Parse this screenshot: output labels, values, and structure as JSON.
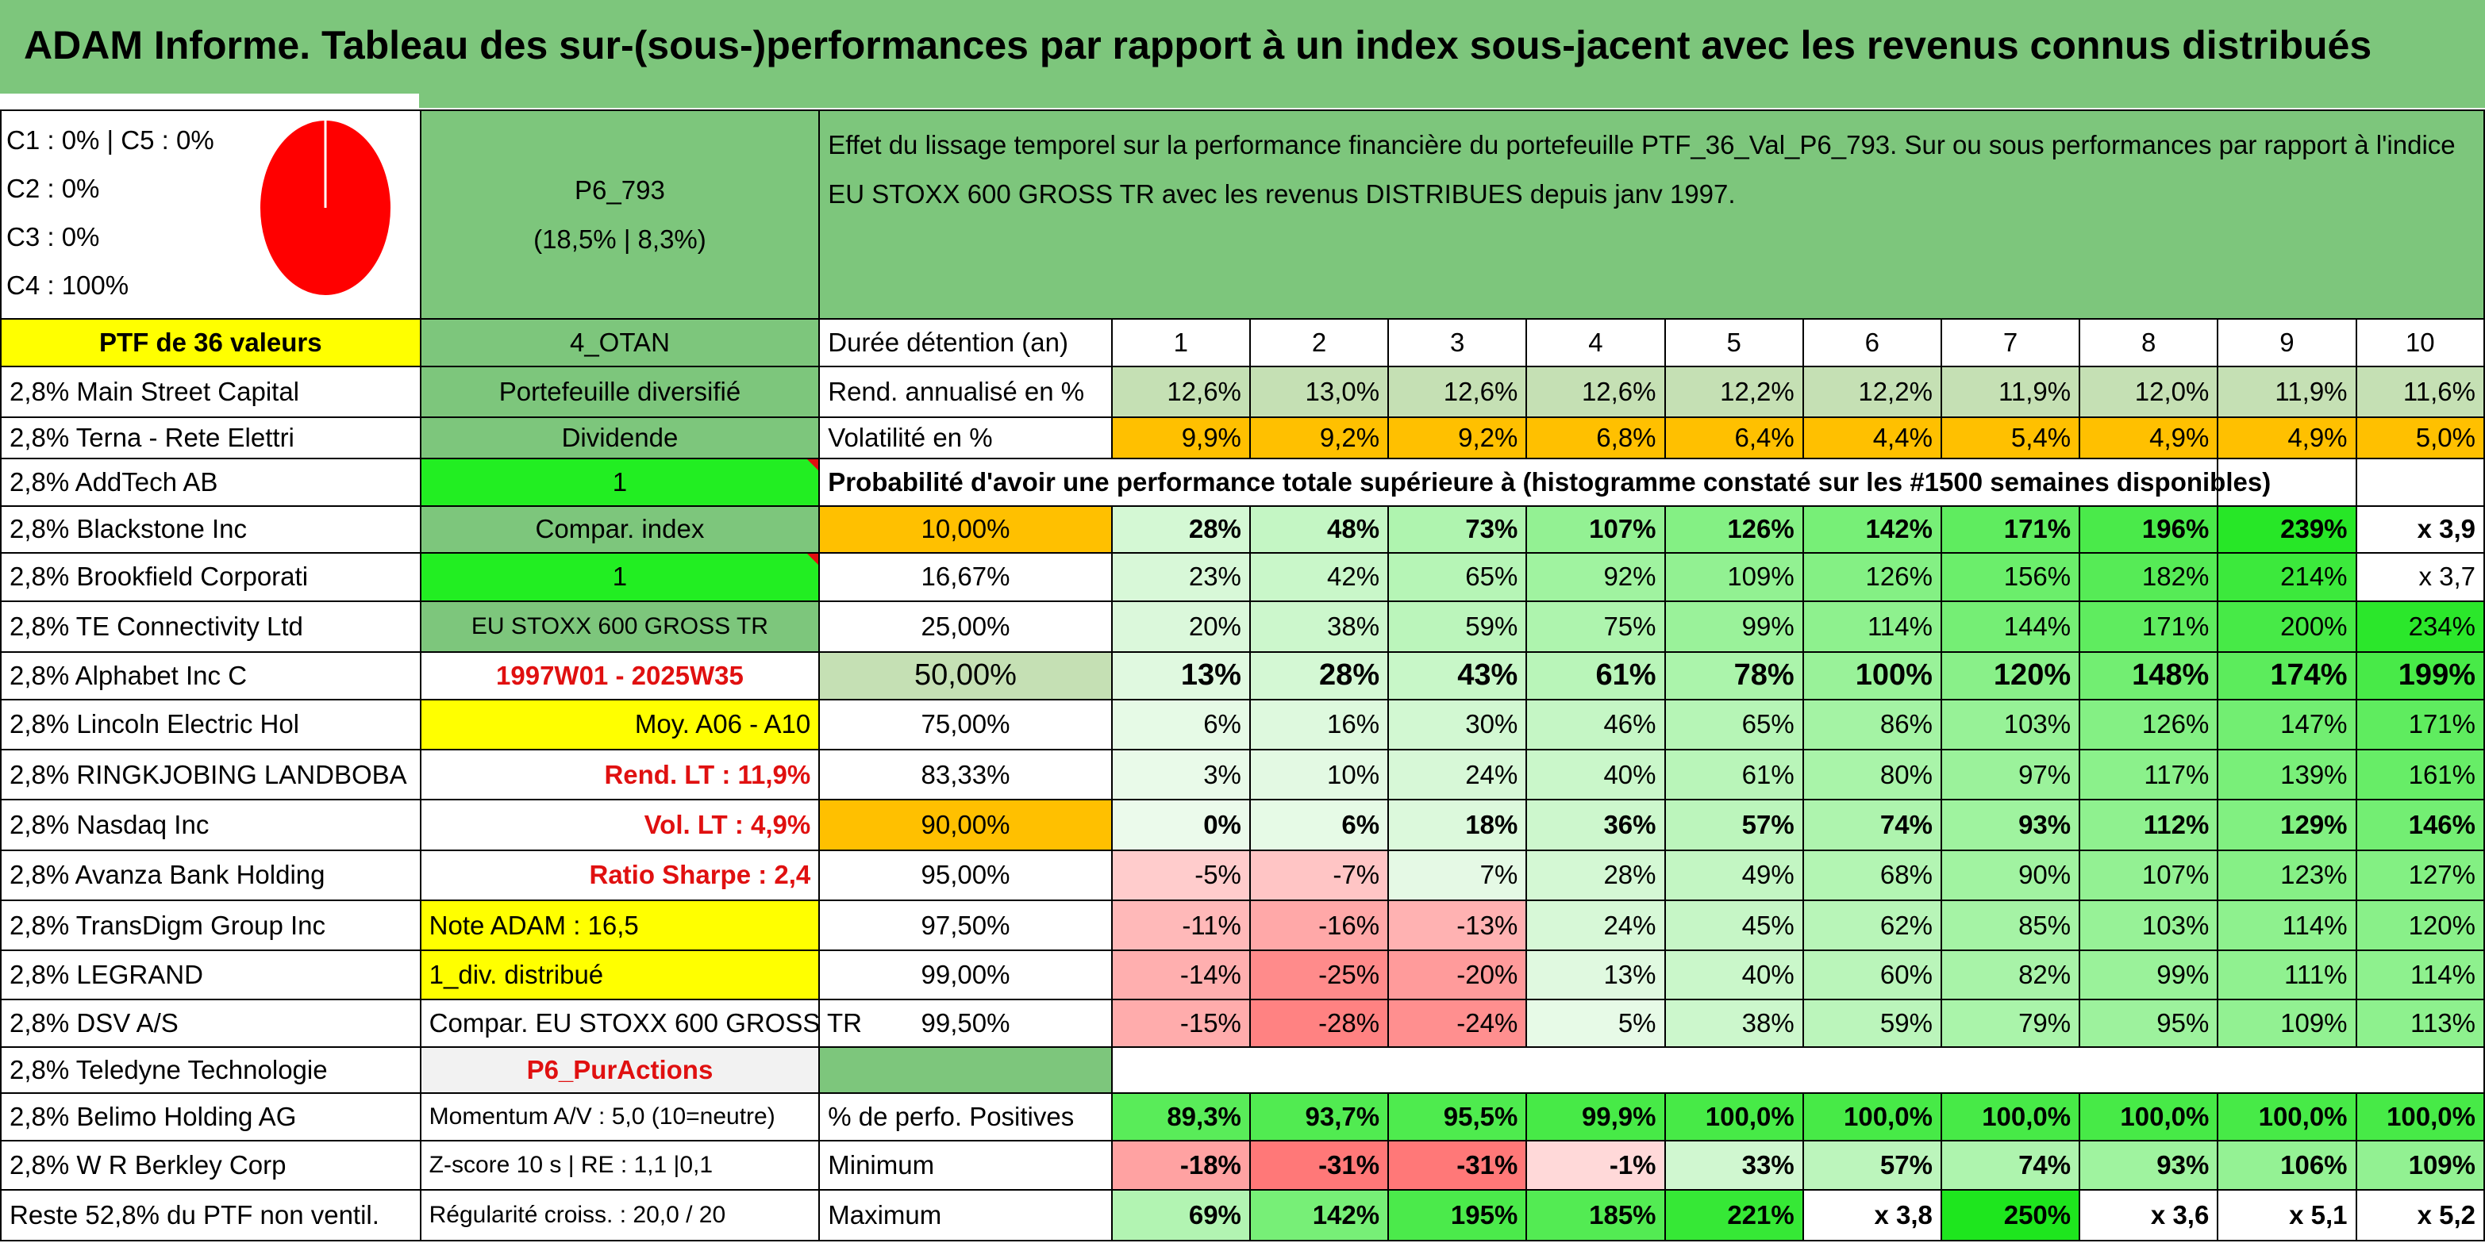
{
  "title": "ADAM Informe. Tableau des sur-(sous-)performances par rapport à un index sous-jacent avec les revenus connus distribués",
  "pie": {
    "lines": [
      "C1 : 0% | C5 : 0%",
      "C2 : 0%",
      "C3 : 0%",
      "C4 : 100%"
    ],
    "color": "#ff0000"
  },
  "ptf_id": "P6_793",
  "ptf_perf": "(18,5% | 8,3%)",
  "description": "Effet du lissage temporel sur la performance financière du portefeuille PTF_36_Val_P6_793. Sur ou sous performances par rapport à l'indice EU STOXX 600 GROSS TR avec les revenus DISTRIBUES depuis janv 1997.",
  "ptf_count": "PTF de 36 valeurs",
  "col2": [
    "4_OTAN",
    "Portefeuille diversifié",
    "Dividende",
    "1",
    "Compar. index",
    "1",
    "EU STOXX 600 GROSS TR",
    "1997W01 - 2025W35",
    "Moy. A06 - A10",
    "Rend. LT : 11,9%",
    "Vol. LT : 4,9%",
    "Ratio Sharpe : 2,4",
    "Note ADAM : 16,5",
    "1_div. distribué",
    "Compar. EU STOXX 600 GROSS TR",
    "P6_PurActions",
    "Momentum A/V : 5,0 (10=neutre)",
    "Z-score 10 s | RE : 1,1 |0,1",
    "Régularité croiss. : 20,0 / 20"
  ],
  "holdings": [
    "2,8% Main Street Capital",
    "2,8% Terna - Rete Elettri",
    "2,8% AddTech AB",
    "2,8% Blackstone Inc",
    "2,8% Brookfield Corporati",
    "2,8% TE Connectivity Ltd",
    "2,8% Alphabet Inc C",
    "2,8% Lincoln Electric Hol",
    "2,8% RINGKJOBING LANDBOBA",
    "2,8% Nasdaq Inc",
    "2,8% Avanza Bank Holding",
    "2,8% TransDigm Group Inc",
    "2,8% LEGRAND",
    "2,8% DSV A/S",
    "2,8% Teledyne Technologie",
    "2,8% Belimo Holding AG",
    "2,8% W R Berkley Corp",
    "Reste 52,8% du PTF non ventil."
  ],
  "labels": {
    "duration": "Durée détention (an)",
    "return": "Rend. annualisé en %",
    "volatility": "Volatilité en %",
    "probability": "Probabilité d'avoir une performance totale supérieure à (histogramme constaté sur les #1500 semaines disponibles)",
    "positive": "% de perfo. Positives",
    "minimum": "Minimum",
    "maximum": "Maximum"
  },
  "years": [
    "1",
    "2",
    "3",
    "4",
    "5",
    "6",
    "7",
    "8",
    "9",
    "10"
  ],
  "returns": [
    "12,6%",
    "13,0%",
    "12,6%",
    "12,6%",
    "12,2%",
    "12,2%",
    "11,9%",
    "12,0%",
    "11,9%",
    "11,6%"
  ],
  "volatility": [
    "9,9%",
    "9,2%",
    "9,2%",
    "6,8%",
    "6,4%",
    "4,4%",
    "5,4%",
    "4,9%",
    "4,9%",
    "5,0%"
  ],
  "quantiles": [
    {
      "q": "10,00%",
      "values": [
        "28%",
        "48%",
        "73%",
        "107%",
        "126%",
        "142%",
        "171%",
        "196%",
        "239%",
        "x 3,9"
      ]
    },
    {
      "q": "16,67%",
      "values": [
        "23%",
        "42%",
        "65%",
        "92%",
        "109%",
        "126%",
        "156%",
        "182%",
        "214%",
        "x 3,7"
      ]
    },
    {
      "q": "25,00%",
      "values": [
        "20%",
        "38%",
        "59%",
        "75%",
        "99%",
        "114%",
        "144%",
        "171%",
        "200%",
        "234%"
      ]
    },
    {
      "q": "50,00%",
      "values": [
        "13%",
        "28%",
        "43%",
        "61%",
        "78%",
        "100%",
        "120%",
        "148%",
        "174%",
        "199%"
      ]
    },
    {
      "q": "75,00%",
      "values": [
        "6%",
        "16%",
        "30%",
        "46%",
        "65%",
        "86%",
        "103%",
        "126%",
        "147%",
        "171%"
      ]
    },
    {
      "q": "83,33%",
      "values": [
        "3%",
        "10%",
        "24%",
        "40%",
        "61%",
        "80%",
        "97%",
        "117%",
        "139%",
        "161%"
      ]
    },
    {
      "q": "90,00%",
      "values": [
        "0%",
        "6%",
        "18%",
        "36%",
        "57%",
        "74%",
        "93%",
        "112%",
        "129%",
        "146%"
      ]
    },
    {
      "q": "95,00%",
      "values": [
        "-5%",
        "-7%",
        "7%",
        "28%",
        "49%",
        "68%",
        "90%",
        "107%",
        "123%",
        "127%"
      ]
    },
    {
      "q": "97,50%",
      "values": [
        "-11%",
        "-16%",
        "-13%",
        "24%",
        "45%",
        "62%",
        "85%",
        "103%",
        "114%",
        "120%"
      ]
    },
    {
      "q": "99,00%",
      "values": [
        "-14%",
        "-25%",
        "-20%",
        "13%",
        "40%",
        "60%",
        "82%",
        "99%",
        "111%",
        "114%"
      ]
    },
    {
      "q": "99,50%",
      "values": [
        "-15%",
        "-28%",
        "-24%",
        "5%",
        "38%",
        "59%",
        "79%",
        "95%",
        "109%",
        "113%"
      ]
    }
  ],
  "positive": [
    "89,3%",
    "93,7%",
    "95,5%",
    "99,9%",
    "100,0%",
    "100,0%",
    "100,0%",
    "100,0%",
    "100,0%",
    "100,0%"
  ],
  "minimum": [
    "-18%",
    "-31%",
    "-31%",
    "-1%",
    "33%",
    "57%",
    "74%",
    "93%",
    "106%",
    "109%"
  ],
  "maximum": [
    "69%",
    "142%",
    "195%",
    "185%",
    "221%",
    "x 3,8",
    "250%",
    "x 3,6",
    "x 5,1",
    "x 5,2"
  ]
}
